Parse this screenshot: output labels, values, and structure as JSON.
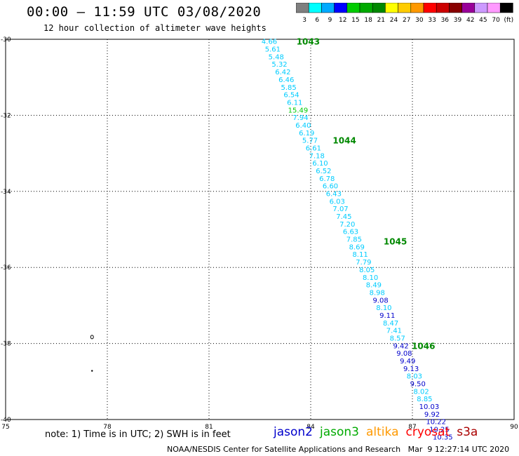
{
  "title": "00:00 – 11:59 UTC 03/08/2020",
  "subtitle": "12 hour collection of altimeter wave heights",
  "colorbar": {
    "labels": [
      "3",
      "6",
      "9",
      "12",
      "15",
      "18",
      "21",
      "24",
      "27",
      "30",
      "33",
      "36",
      "39",
      "42",
      "45",
      "70",
      "(ft)"
    ],
    "colors": [
      "#7f7f7f",
      "#00ffff",
      "#00aaff",
      "#0000ff",
      "#00cc00",
      "#00aa00",
      "#008800",
      "#ffff00",
      "#ffcc00",
      "#ff9900",
      "#ff0000",
      "#cc0000",
      "#880000",
      "#990099",
      "#cc99ff",
      "#ff99ff",
      "#000000"
    ]
  },
  "axes": {
    "x_ticks": [
      "75",
      "78",
      "81",
      "84",
      "87",
      "90"
    ],
    "y_ticks": [
      "-30",
      "-32",
      "-34",
      "-36",
      "-38",
      "-40"
    ]
  },
  "map": {
    "lon_range": [
      75,
      90
    ],
    "lat_range": [
      -40,
      -30
    ],
    "islands": [
      {
        "name": "island-1",
        "lon": 77.55,
        "lat": -37.83
      },
      {
        "name": "island-2",
        "lon": 77.55,
        "lat": -38.72
      }
    ],
    "time_labels": [
      {
        "text": "1043",
        "lon": 83.58,
        "lat": -30.05,
        "color": "#008800"
      },
      {
        "text": "1044",
        "lon": 84.65,
        "lat": -32.65,
        "color": "#008800"
      },
      {
        "text": "1045",
        "lon": 86.15,
        "lat": -35.3,
        "color": "#008800"
      },
      {
        "text": "1046",
        "lon": 86.98,
        "lat": -38.05,
        "color": "#008800"
      }
    ],
    "wave_heights": [
      {
        "text": "4.66",
        "lon": 82.55,
        "lat": -30.05,
        "color": "#00ccff"
      },
      {
        "text": "5.61",
        "lon": 82.65,
        "lat": -30.25,
        "color": "#00ccff"
      },
      {
        "text": "5.48",
        "lon": 82.75,
        "lat": -30.45,
        "color": "#00ccff"
      },
      {
        "text": "5.32",
        "lon": 82.85,
        "lat": -30.65,
        "color": "#00ccff"
      },
      {
        "text": "6.42",
        "lon": 82.95,
        "lat": -30.85,
        "color": "#00ccff"
      },
      {
        "text": "6.46",
        "lon": 83.05,
        "lat": -31.05,
        "color": "#00ccff"
      },
      {
        "text": "5.85",
        "lon": 83.12,
        "lat": -31.25,
        "color": "#00ccff"
      },
      {
        "text": "6.54",
        "lon": 83.2,
        "lat": -31.45,
        "color": "#00ccff"
      },
      {
        "text": "6.11",
        "lon": 83.3,
        "lat": -31.65,
        "color": "#00ccff"
      },
      {
        "text": "15.49",
        "lon": 83.33,
        "lat": -31.85,
        "color": "#00cc00"
      },
      {
        "text": "7.94",
        "lon": 83.47,
        "lat": -32.05,
        "color": "#00ccff"
      },
      {
        "text": "6.40",
        "lon": 83.55,
        "lat": -32.25,
        "color": "#00ccff"
      },
      {
        "text": "6.19",
        "lon": 83.65,
        "lat": -32.45,
        "color": "#00ccff"
      },
      {
        "text": "5.77",
        "lon": 83.75,
        "lat": -32.65,
        "color": "#00ccff"
      },
      {
        "text": "6.61",
        "lon": 83.85,
        "lat": -32.85,
        "color": "#00ccff"
      },
      {
        "text": "7.18",
        "lon": 83.95,
        "lat": -33.05,
        "color": "#00ccff"
      },
      {
        "text": "6.10",
        "lon": 84.05,
        "lat": -33.25,
        "color": "#00ccff"
      },
      {
        "text": "6.52",
        "lon": 84.15,
        "lat": -33.45,
        "color": "#00ccff"
      },
      {
        "text": "6.78",
        "lon": 84.25,
        "lat": -33.65,
        "color": "#00ccff"
      },
      {
        "text": "6.60",
        "lon": 84.35,
        "lat": -33.85,
        "color": "#00ccff"
      },
      {
        "text": "6.43",
        "lon": 84.45,
        "lat": -34.05,
        "color": "#00ccff"
      },
      {
        "text": "6.03",
        "lon": 84.55,
        "lat": -34.25,
        "color": "#00ccff"
      },
      {
        "text": "7.07",
        "lon": 84.65,
        "lat": -34.45,
        "color": "#00ccff"
      },
      {
        "text": "7.45",
        "lon": 84.75,
        "lat": -34.65,
        "color": "#00ccff"
      },
      {
        "text": "7.20",
        "lon": 84.85,
        "lat": -34.85,
        "color": "#00ccff"
      },
      {
        "text": "6.63",
        "lon": 84.95,
        "lat": -35.05,
        "color": "#00ccff"
      },
      {
        "text": "7.85",
        "lon": 85.05,
        "lat": -35.25,
        "color": "#00ccff"
      },
      {
        "text": "8.69",
        "lon": 85.13,
        "lat": -35.45,
        "color": "#00ccff"
      },
      {
        "text": "8.11",
        "lon": 85.23,
        "lat": -35.65,
        "color": "#00ccff"
      },
      {
        "text": "7.79",
        "lon": 85.33,
        "lat": -35.85,
        "color": "#00ccff"
      },
      {
        "text": "8.05",
        "lon": 85.43,
        "lat": -36.05,
        "color": "#00ccff"
      },
      {
        "text": "8.10",
        "lon": 85.53,
        "lat": -36.25,
        "color": "#00ccff"
      },
      {
        "text": "8.49",
        "lon": 85.63,
        "lat": -36.45,
        "color": "#00ccff"
      },
      {
        "text": "8.98",
        "lon": 85.73,
        "lat": -36.65,
        "color": "#00ccff"
      },
      {
        "text": "9.08",
        "lon": 85.83,
        "lat": -36.85,
        "color": "#0000cc"
      },
      {
        "text": "8.10",
        "lon": 85.93,
        "lat": -37.05,
        "color": "#00ccff"
      },
      {
        "text": "9.11",
        "lon": 86.03,
        "lat": -37.25,
        "color": "#0000cc"
      },
      {
        "text": "8.47",
        "lon": 86.13,
        "lat": -37.45,
        "color": "#00ccff"
      },
      {
        "text": "7.41",
        "lon": 86.23,
        "lat": -37.65,
        "color": "#00ccff"
      },
      {
        "text": "8.57",
        "lon": 86.33,
        "lat": -37.85,
        "color": "#00ccff"
      },
      {
        "text": "9.42",
        "lon": 86.43,
        "lat": -38.05,
        "color": "#0000cc"
      },
      {
        "text": "9.08",
        "lon": 86.53,
        "lat": -38.25,
        "color": "#0000cc"
      },
      {
        "text": "9.49",
        "lon": 86.63,
        "lat": -38.45,
        "color": "#0000cc"
      },
      {
        "text": "9.13",
        "lon": 86.73,
        "lat": -38.65,
        "color": "#0000cc"
      },
      {
        "text": "8.03",
        "lon": 86.83,
        "lat": -38.85,
        "color": "#00ccff"
      },
      {
        "text": "9.50",
        "lon": 86.93,
        "lat": -39.05,
        "color": "#0000cc"
      },
      {
        "text": "8.02",
        "lon": 87.03,
        "lat": -39.25,
        "color": "#00ccff"
      },
      {
        "text": "8.85",
        "lon": 87.13,
        "lat": -39.45,
        "color": "#00ccff"
      },
      {
        "text": "10.03",
        "lon": 87.2,
        "lat": -39.65,
        "color": "#0000cc"
      },
      {
        "text": "9.92",
        "lon": 87.35,
        "lat": -39.85,
        "color": "#0000cc"
      },
      {
        "text": "10.22",
        "lon": 87.4,
        "lat": -40.05,
        "color": "#0000cc"
      },
      {
        "text": "10.25",
        "lon": 87.5,
        "lat": -40.25,
        "color": "#0000cc"
      },
      {
        "text": "10.35",
        "lon": 87.6,
        "lat": -40.45,
        "color": "#0000cc"
      }
    ]
  },
  "note": "note: 1) Time is in UTC; 2) SWH is in feet",
  "satellites": [
    {
      "name": "jason2",
      "color": "#0000cc"
    },
    {
      "name": "jason3",
      "color": "#00aa00"
    },
    {
      "name": "altika",
      "color": "#ff9900"
    },
    {
      "name": "cryosat",
      "color": "#ff0000"
    },
    {
      "name": "s3a",
      "color": "#aa0000"
    }
  ],
  "footer": "NOAA/NESDIS Center for Satellite Applications and Research   Mar  9 12:27:14 UTC 2020"
}
